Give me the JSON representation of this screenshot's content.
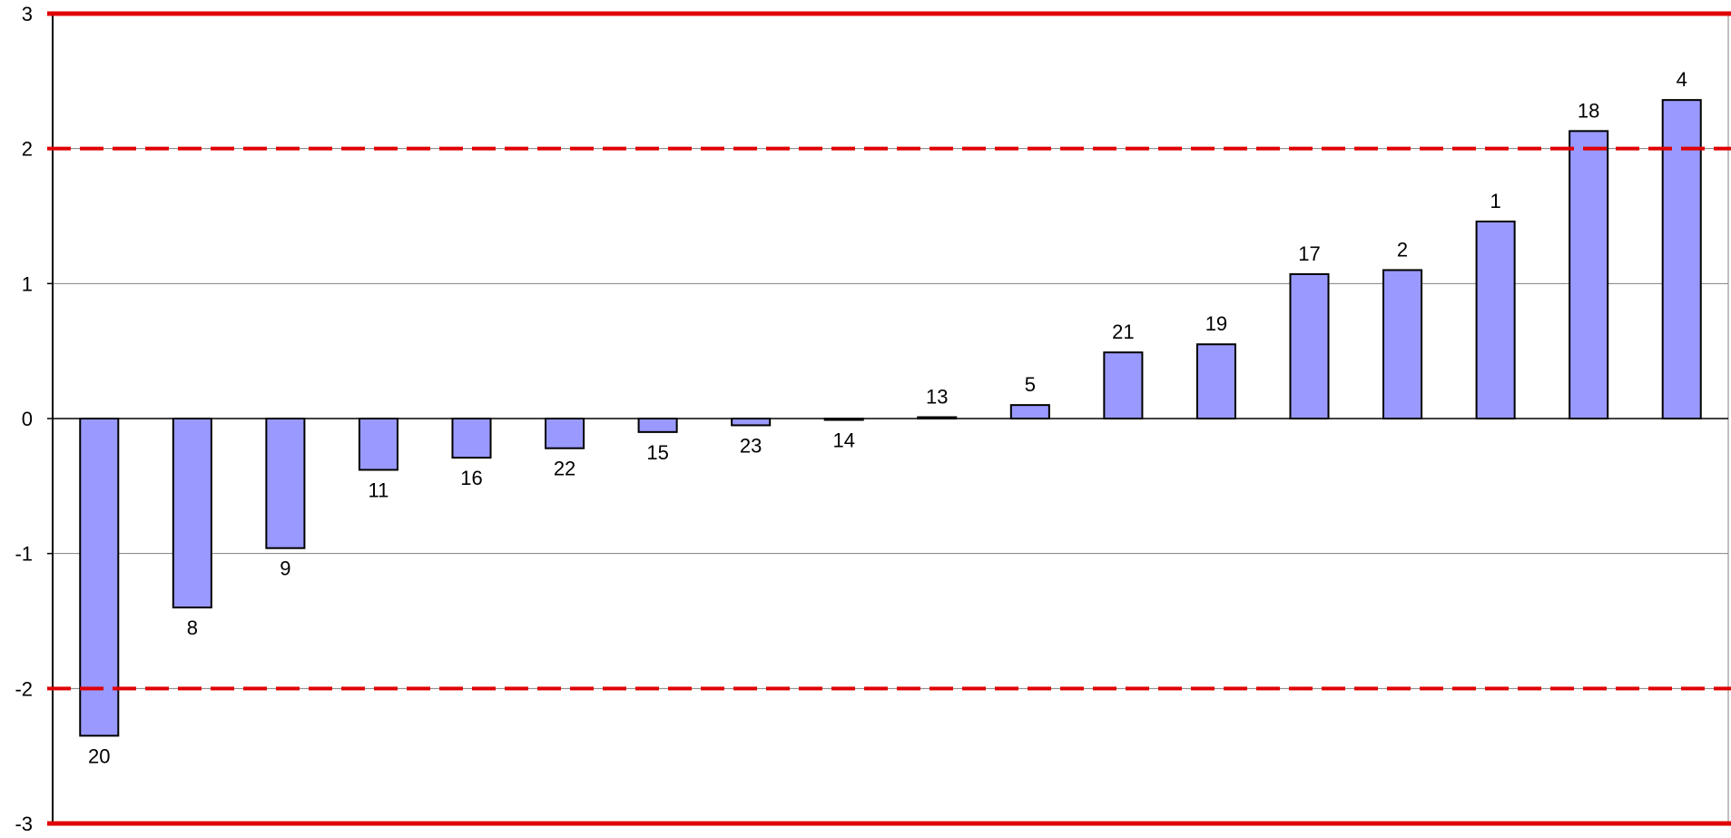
{
  "chart_data": {
    "type": "bar",
    "categories": [
      "20",
      "8",
      "9",
      "11",
      "16",
      "22",
      "15",
      "23",
      "14",
      "13",
      "5",
      "21",
      "19",
      "17",
      "2",
      "1",
      "18",
      "4"
    ],
    "values": [
      -2.35,
      -1.4,
      -0.96,
      -0.38,
      -0.29,
      -0.22,
      -0.1,
      -0.05,
      -0.01,
      0.01,
      0.1,
      0.49,
      0.55,
      1.07,
      1.1,
      1.46,
      2.13,
      2.36
    ],
    "ylim": [
      -3,
      3
    ],
    "yticks": [
      "3",
      "2",
      "1",
      "0",
      "-1",
      "-2",
      "-3"
    ],
    "grid": true,
    "legend": "none",
    "reference_lines": [
      {
        "y": 3,
        "style": "solid",
        "color": "#e00000"
      },
      {
        "y": -3,
        "style": "solid",
        "color": "#e00000"
      },
      {
        "y": 2,
        "style": "dashed",
        "color": "#e00000"
      },
      {
        "y": -2,
        "style": "dashed",
        "color": "#e00000"
      }
    ],
    "colors": {
      "bar_fill": "#9999ff",
      "bar_stroke": "#000000",
      "grid": "#808080"
    }
  }
}
